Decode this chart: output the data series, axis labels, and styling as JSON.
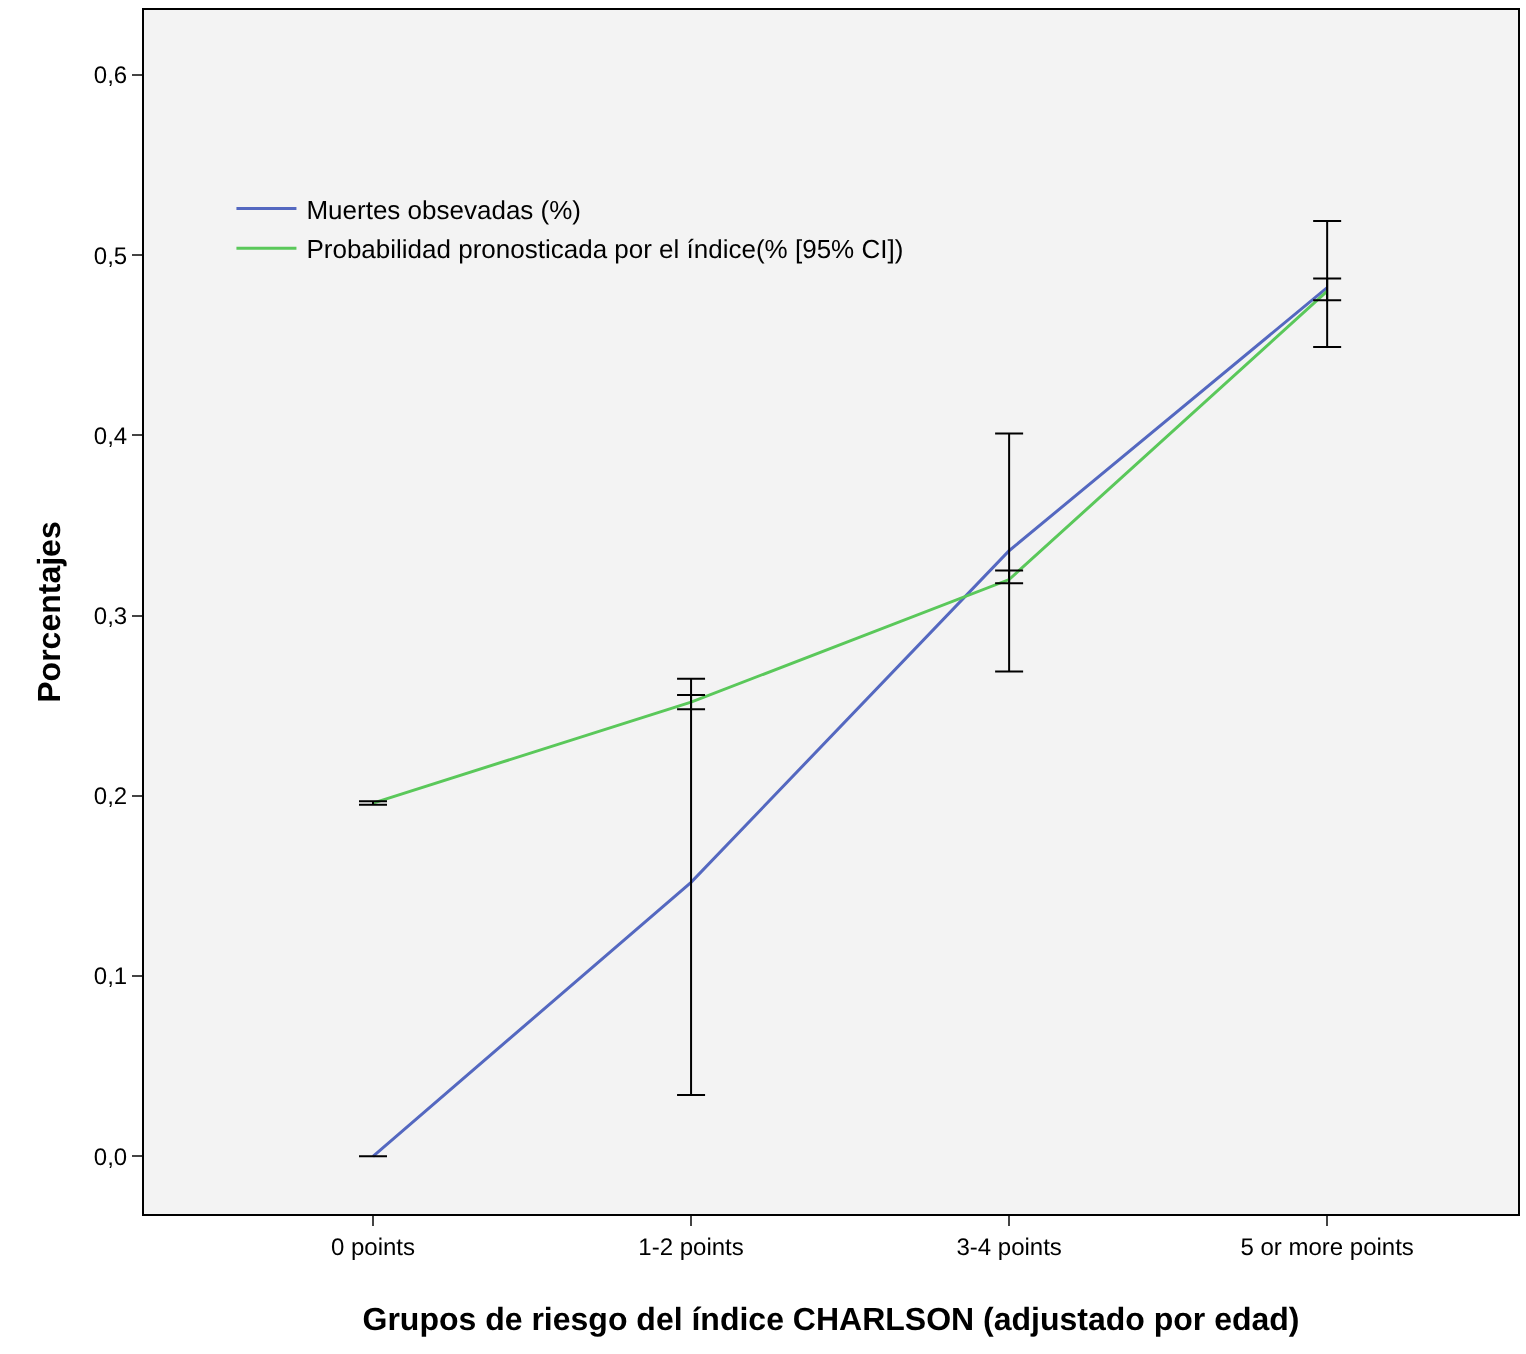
{
  "chart_data": {
    "type": "line",
    "xlabel": "Grupos de riesgo del índice CHARLSON (adjustado por edad)",
    "ylabel": "Porcentajes",
    "categories": [
      "0 points",
      "1-2 points",
      "3-4 points",
      "5 or more points"
    ],
    "series": [
      {
        "name": "Muertes obsevadas (%)",
        "color": "#5468c0",
        "values": [
          0,
          0.152,
          0.336,
          0.482
        ],
        "errors": [
          [
            0,
            0
          ],
          [
            0.034,
            0.265
          ],
          [
            0.269,
            0.401
          ],
          [
            0.449,
            0.519
          ]
        ]
      },
      {
        "name": "Probabilidad pronosticada por el índice(% [95% CI])",
        "color": "#5ac85a",
        "values": [
          0.196,
          0.252,
          0.32,
          0.48
        ],
        "errors": [
          [
            0.195,
            0.197
          ],
          [
            0.248,
            0.256
          ],
          [
            0.318,
            0.325
          ],
          [
            0.475,
            0.487
          ]
        ]
      }
    ],
    "ylim": [
      -0.032,
      0.636
    ],
    "yticks": [
      {
        "value": 0,
        "label": "0,0"
      },
      {
        "value": 0.1,
        "label": "0,1"
      },
      {
        "value": 0.2,
        "label": "0,2"
      },
      {
        "value": 0.3,
        "label": "0,3"
      },
      {
        "value": 0.4,
        "label": "0,4"
      },
      {
        "value": 0.5,
        "label": "0,5"
      },
      {
        "value": 0.6,
        "label": "0,6"
      }
    ],
    "grid": false,
    "legend": "top left",
    "marker": "none",
    "line_style": "solid"
  }
}
